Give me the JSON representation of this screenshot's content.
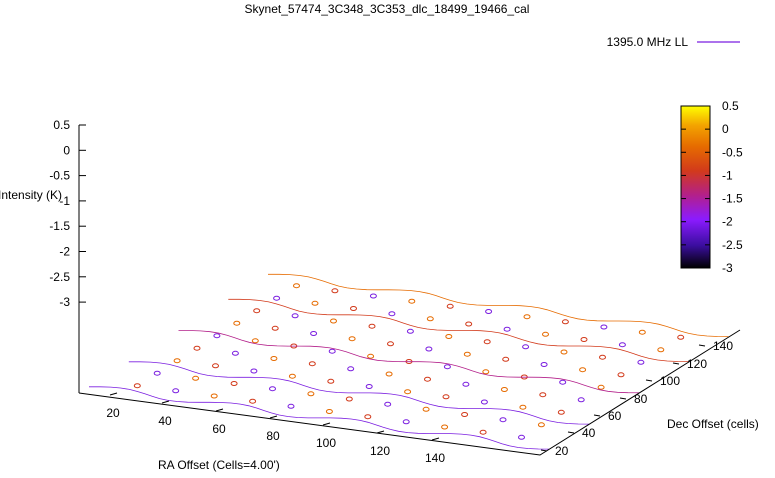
{
  "chart_data": {
    "type": "surface",
    "title": "Skynet_57474_3C348_3C353_dlc_18499_19466_cal",
    "zlabel": "Intensity (K)",
    "xlabel": "RA Offset (Cells=4.00')",
    "ylabel": "Dec Offset (cells)",
    "series": [
      {
        "name": "1395.0 MHz LL",
        "color": "#7b1fe0"
      }
    ],
    "zlim": [
      -3,
      0.5
    ],
    "z_ticks": [
      "0.5",
      "0",
      "-0.5",
      "-1",
      "-1.5",
      "-2",
      "-2.5",
      "-3"
    ],
    "x_ticks": [
      "20",
      "40",
      "60",
      "80",
      "100",
      "120",
      "140"
    ],
    "y_ticks": [
      "20",
      "40",
      "60",
      "80",
      "100",
      "120",
      "140"
    ],
    "colorbar": {
      "range": [
        -3,
        0.5
      ],
      "ticks": [
        "0.5",
        "0",
        "-0.5",
        "-1",
        "-1.5",
        "-2",
        "-2.5",
        "-3"
      ],
      "palette": [
        "#000000",
        "#3b0ea0",
        "#8b1bff",
        "#b3208a",
        "#d23a1b",
        "#e66b00",
        "#f3a300",
        "#ffff00"
      ]
    },
    "grid": false,
    "legend": "top-right"
  }
}
